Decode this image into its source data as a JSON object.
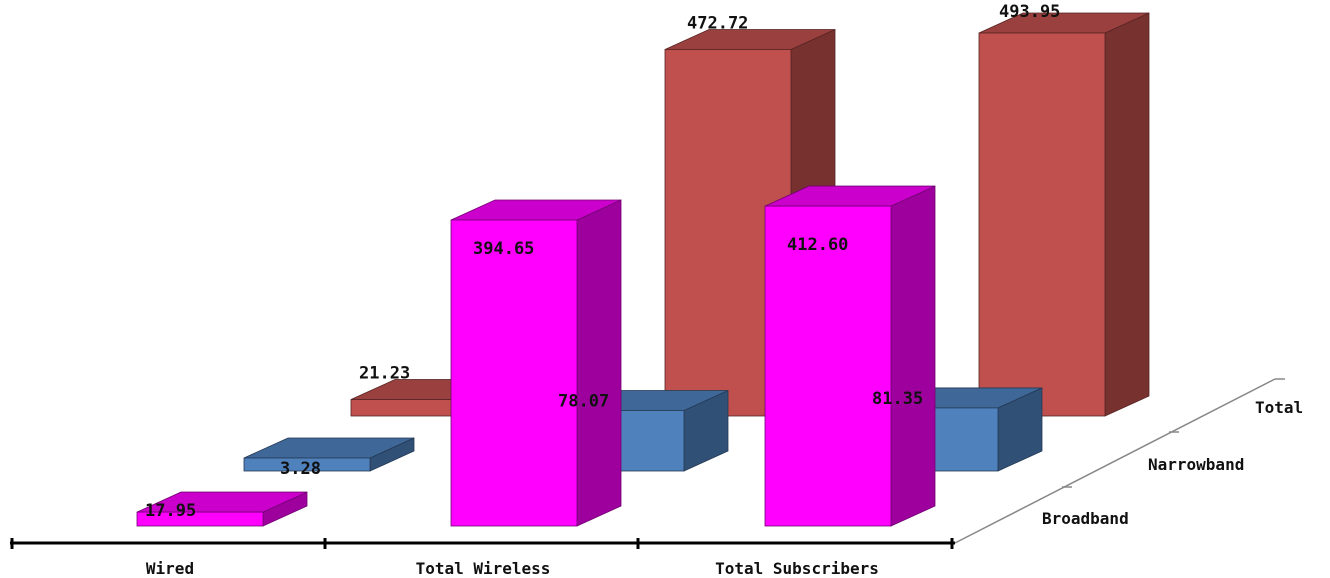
{
  "chart_data": {
    "type": "bar",
    "title": "",
    "xlabel": "",
    "ylabel": "",
    "categories": [
      "Wired",
      "Total Wireless",
      "Total Subscribers"
    ],
    "series": [
      {
        "name": "Broadband",
        "values": [
          17.95,
          394.65,
          412.6
        ],
        "labels": [
          "17.95",
          "394.65",
          "412.60"
        ]
      },
      {
        "name": "Narrowband",
        "values": [
          3.28,
          78.07,
          81.35
        ],
        "labels": [
          "3.28",
          "78.07",
          "81.35"
        ]
      },
      {
        "name": "Total",
        "values": [
          21.23,
          472.72,
          493.95
        ],
        "labels": [
          "21.23",
          "472.72",
          "493.95"
        ]
      }
    ],
    "ylim": [
      0,
      500
    ],
    "grid": false,
    "legend": "depth-axis-right",
    "colors": {
      "Broadband": "#ff00ff",
      "Narrowband": "#4f81bd",
      "Total": "#c0504d"
    }
  }
}
